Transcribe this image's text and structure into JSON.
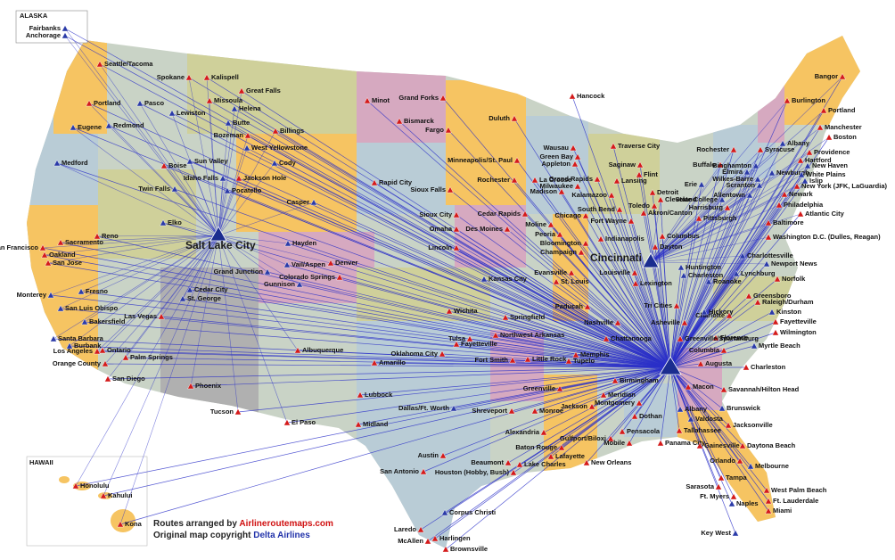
{
  "map": {
    "inset_labels": [
      "ALASKA",
      "HAWAII"
    ],
    "hubs": [
      "Salt Lake City",
      "Cincinnati"
    ],
    "cities": [
      "Fairbanks",
      "Anchorage",
      "Seattle/Tacoma",
      "Spokane",
      "Kalispell",
      "Portland",
      "Pasco",
      "Lewiston",
      "Missoula",
      "Great Falls",
      "Helena",
      "Eugene",
      "Redmond",
      "Butte",
      "Bozeman",
      "Billings",
      "West Yellowstone",
      "Medford",
      "Sun Valley",
      "Boise",
      "Cody",
      "Idaho Falls",
      "Jackson Hole",
      "Twin Falls",
      "Pocatello",
      "Casper",
      "Elko",
      "Reno",
      "Sacramento",
      "San Francisco",
      "Oakland",
      "San Jose",
      "Hayden",
      "Vail/Aspen",
      "Denver",
      "Grand Junction",
      "Colorado Springs",
      "Gunnison",
      "Cedar City",
      "St. George",
      "Monterey",
      "Fresno",
      "San Luis Obispo",
      "Bakersfield",
      "Las Vegas",
      "Santa Barbara",
      "Burbank",
      "Los Angeles",
      "Ontario",
      "Palm Springs",
      "Orange County",
      "San Diego",
      "Phoenix",
      "Tucson",
      "Albuquerque",
      "El Paso",
      "Amarillo",
      "Lubbock",
      "Midland",
      "Dallas/Ft. Worth",
      "Oklahoma City",
      "Tulsa",
      "Wichita",
      "Springfield",
      "Kansas City",
      "Lincoln",
      "Omaha",
      "Sioux City",
      "Sioux Falls",
      "Rapid City",
      "Minot",
      "Grand Forks",
      "Bismarck",
      "Fargo",
      "Duluth",
      "Hancock",
      "Minneapolis/St. Paul",
      "Rochester",
      "Wausau",
      "Green Bay",
      "Appleton",
      "La Crosse",
      "Madison",
      "Milwaukee",
      "Grand Rapids",
      "Traverse City",
      "Saginaw",
      "Flint",
      "Lansing",
      "Kalamazoo",
      "Detroit",
      "Cedar Rapids",
      "Des Moines",
      "South Bend",
      "Toledo",
      "Cleveland",
      "Akron/Canton",
      "Chicago",
      "Moline",
      "Fort Wayne",
      "Peoria",
      "Indianapolis",
      "Bloomington",
      "Champaign",
      "Dayton",
      "Columbus",
      "Evansville",
      "St. Louis",
      "Louisville",
      "Lexington",
      "Paducah",
      "Nashville",
      "Northwest Arkansas",
      "Fayetteville",
      "Fort Smith",
      "Little Rock",
      "Memphis",
      "Tupelo",
      "Chattanooga",
      "Birmingham",
      "Shreveport",
      "Monroe",
      "Greenville",
      "Jackson",
      "Meridian",
      "Montgomery",
      "Dothan",
      "Alexandria",
      "Gulfport/Biloxi",
      "Mobile",
      "Pensacola",
      "Panama City",
      "Tallahassee",
      "Baton Rouge",
      "Lafayette",
      "Beaumont",
      "Lake Charles",
      "New Orleans",
      "Houston (Hobby, Bush)",
      "Austin",
      "San Antonio",
      "Corpus Christi",
      "Laredo",
      "McAllen",
      "Harlingen",
      "Brownsville",
      "Augusta",
      "Macon",
      "Savannah/Hilton Head",
      "Albany",
      "Valdosta",
      "Brunswick",
      "Jacksonville",
      "Gainesville",
      "Daytona Beach",
      "Orlando",
      "Melbourne",
      "Tampa",
      "Sarasota",
      "Ft. Myers",
      "Naples",
      "West Palm Beach",
      "Ft. Lauderdale",
      "Miami",
      "Key West",
      "Charleston",
      "Myrtle Beach",
      "Columbia",
      "Florence",
      "Wilmington",
      "Fayetteville",
      "Greensboro",
      "Raleigh/Durham",
      "Kinston",
      "Charlotte",
      "Hickory",
      "Greenville/Spartanburg",
      "Asheville",
      "Tri Cities",
      "Roanoke",
      "Lynchburg",
      "Newport News",
      "Norfolk",
      "Charlottesville",
      "Huntington",
      "Charleston",
      "Bangor",
      "Burlington",
      "Portland",
      "Manchester",
      "Boston",
      "Rochester",
      "Albany",
      "Syracuse",
      "Providence",
      "Buffalo",
      "Binghamton",
      "Hartford",
      "New Haven",
      "Elmira",
      "Newburgh",
      "White Plains",
      "Wilkes-Barre",
      "Scranton",
      "Islip",
      "Erie",
      "New York (JFK, LaGuardia)",
      "Allentown",
      "Newark",
      "State College",
      "Harrisburg",
      "Philadelphia",
      "Pittsburgh",
      "Atlantic City",
      "Baltimore",
      "Washington D.C. (Dulles, Reagan)",
      "Honolulu",
      "Kahului",
      "Kona"
    ],
    "credits": {
      "arranged_prefix": "Routes arranged by",
      "arranged_site": "Airlineroutemaps.com",
      "copyright_prefix": "Original map copyright",
      "copyright_owner": "Delta Airlines"
    }
  }
}
